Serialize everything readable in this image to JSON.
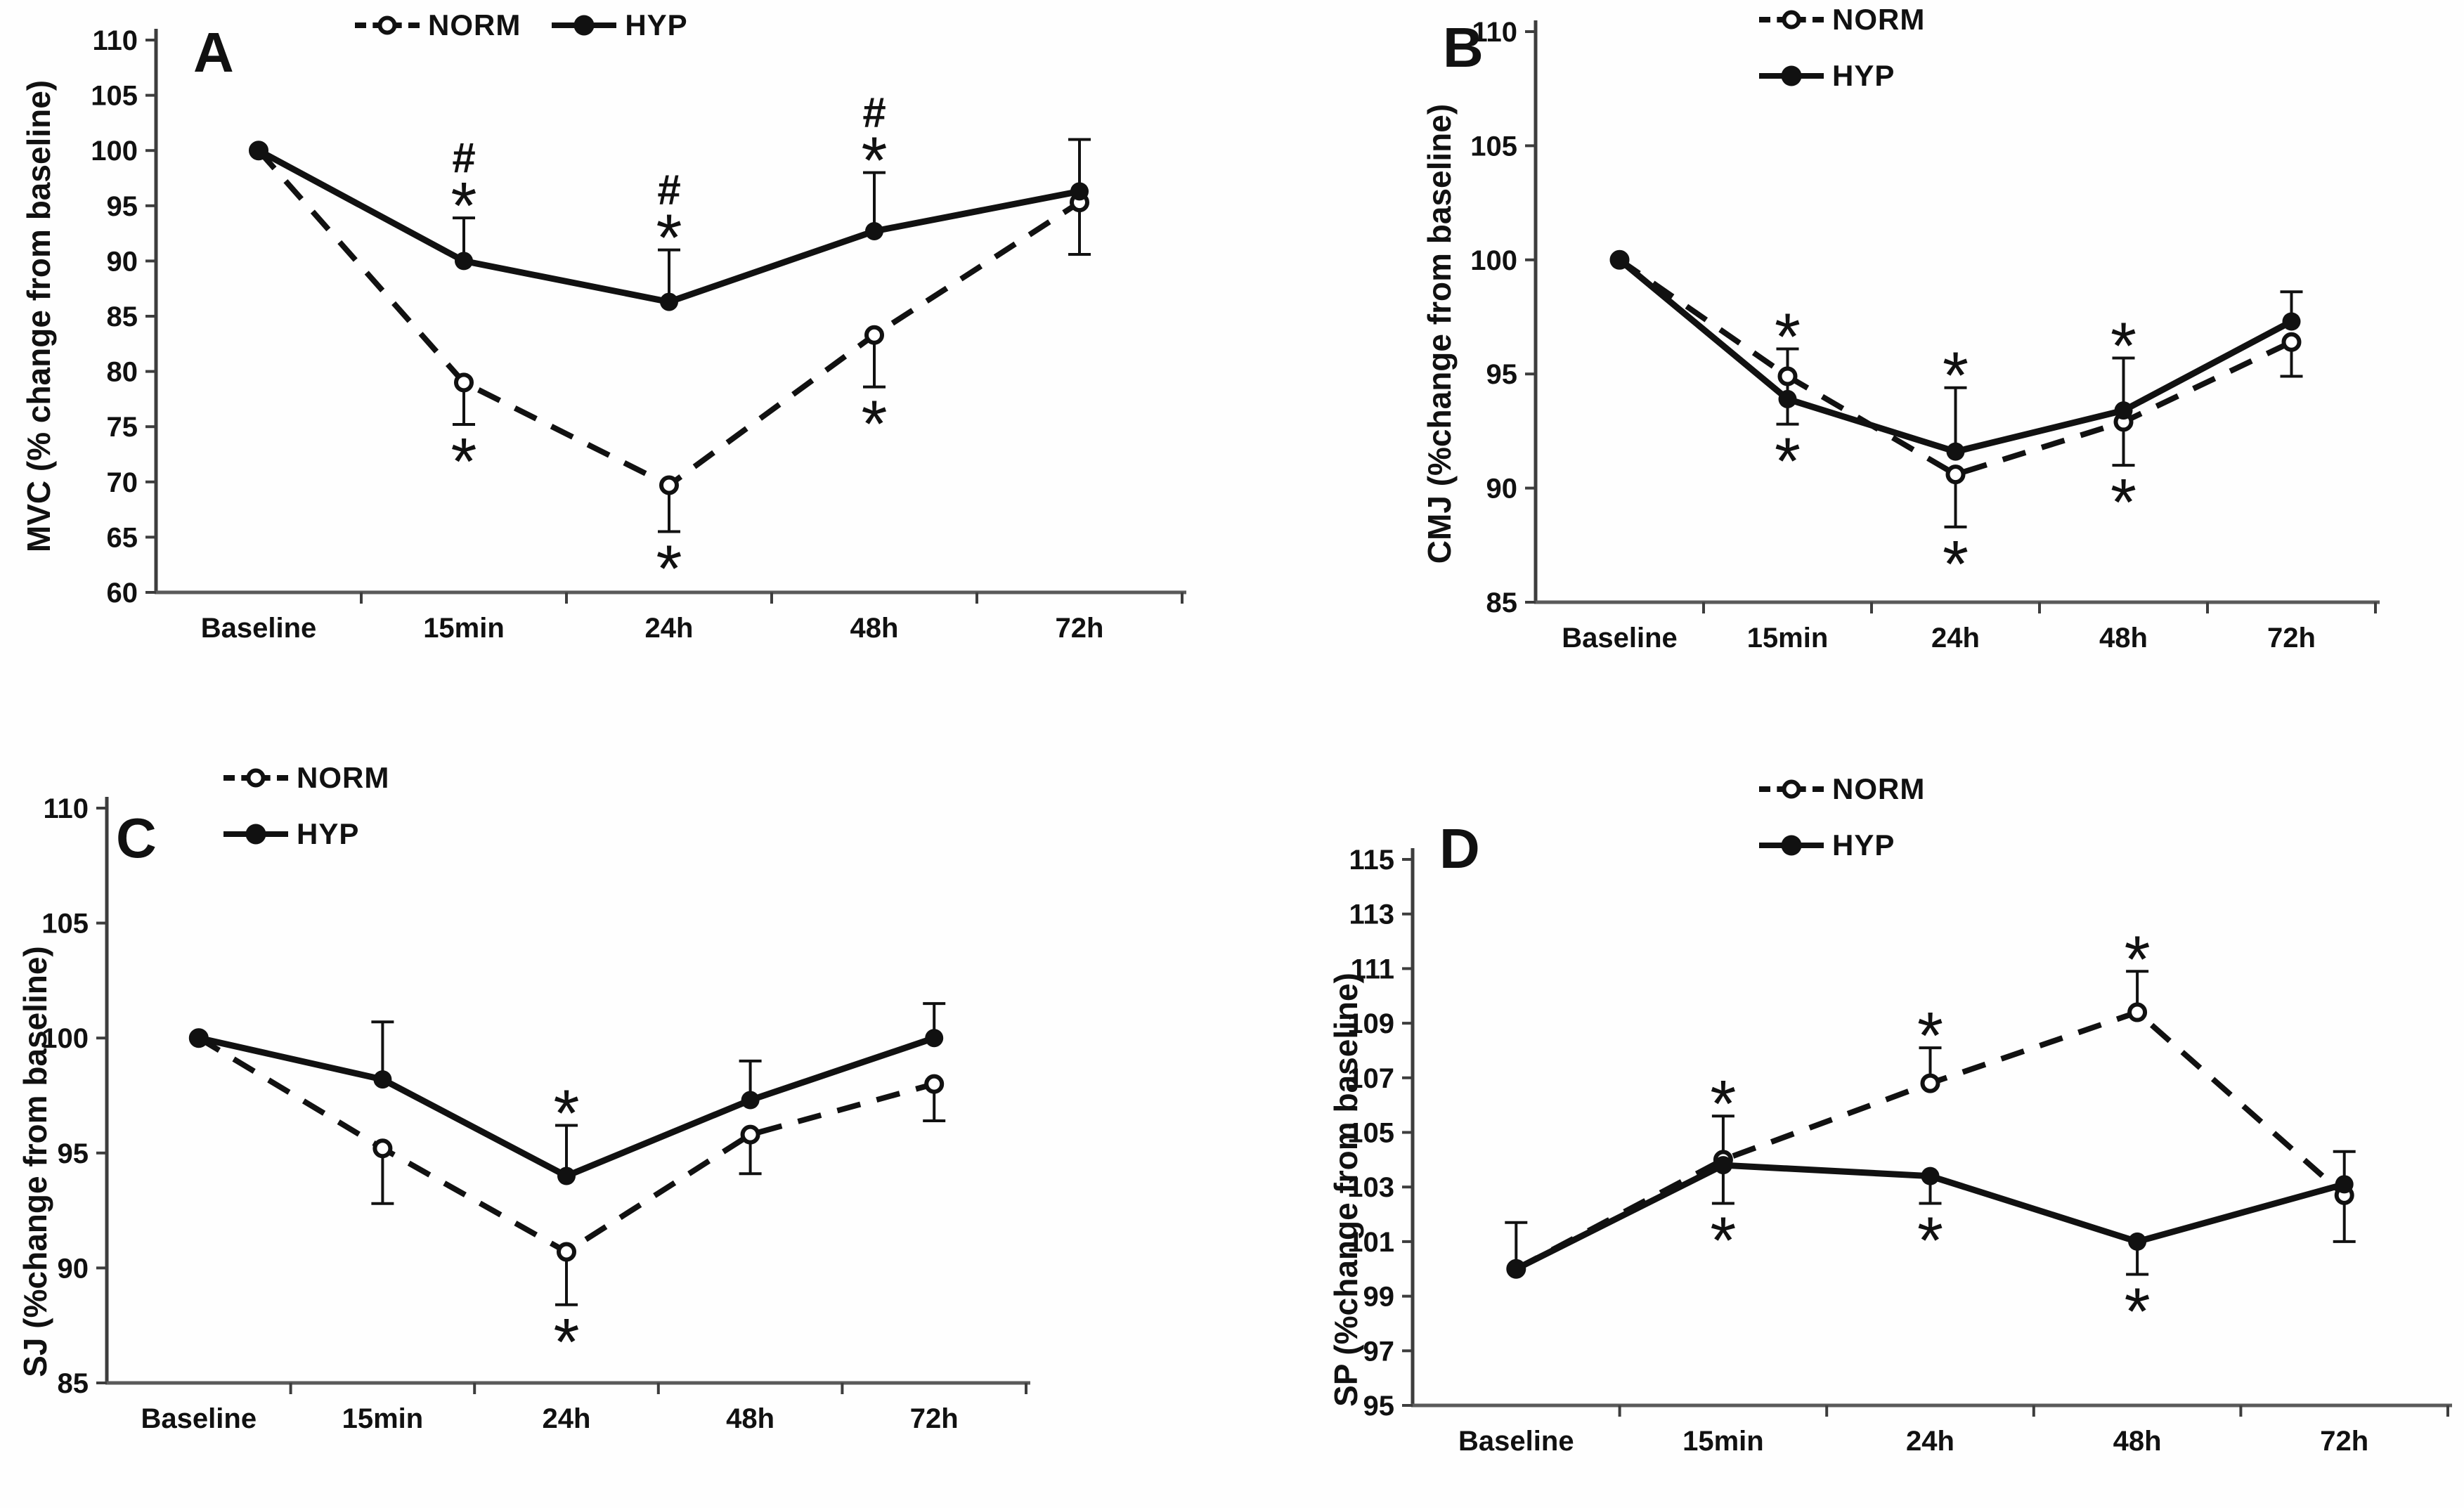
{
  "chart_data": [
    {
      "panel": "A",
      "type": "line",
      "ylabel": "MVC (% change from baseline)",
      "categories": [
        "Baseline",
        "15min",
        "24h",
        "48h",
        "72h"
      ],
      "ylim": [
        60,
        110
      ],
      "ystep": 5,
      "grid": false,
      "legend_position": "top-horizontal",
      "series": [
        {
          "name": "NORM",
          "style": "dashed-open",
          "values": [
            100,
            79.0,
            69.7,
            83.3,
            95.3
          ],
          "err_up": [
            null,
            null,
            null,
            null,
            null
          ],
          "err_down": [
            null,
            3.8,
            4.2,
            4.7,
            4.7
          ]
        },
        {
          "name": "HYP",
          "style": "solid-filled",
          "values": [
            100,
            90.0,
            86.3,
            92.7,
            96.3
          ],
          "err_up": [
            null,
            3.9,
            4.7,
            5.3,
            4.7
          ],
          "err_down": [
            null,
            null,
            null,
            null,
            null
          ]
        }
      ],
      "annotations": [
        {
          "x": 1,
          "pos": "above",
          "series": "HYP",
          "symbols": [
            "#",
            "*"
          ]
        },
        {
          "x": 1,
          "pos": "below",
          "series": "NORM",
          "symbols": [
            "*"
          ]
        },
        {
          "x": 2,
          "pos": "above",
          "series": "HYP",
          "symbols": [
            "#",
            "*"
          ]
        },
        {
          "x": 2,
          "pos": "below",
          "series": "NORM",
          "symbols": [
            "*"
          ]
        },
        {
          "x": 3,
          "pos": "above",
          "series": "HYP",
          "symbols": [
            "#",
            "*"
          ]
        },
        {
          "x": 3,
          "pos": "below",
          "series": "NORM",
          "symbols": [
            "*"
          ]
        }
      ]
    },
    {
      "panel": "B",
      "type": "line",
      "ylabel": "CMJ (%change from baseline)",
      "categories": [
        "Baseline",
        "15min",
        "24h",
        "48h",
        "72h"
      ],
      "ylim": [
        85,
        110
      ],
      "ystep": 5,
      "grid": false,
      "legend_position": "top-stacked",
      "series": [
        {
          "name": "NORM",
          "style": "dashed-open",
          "values": [
            100,
            94.9,
            90.6,
            92.9,
            96.4
          ],
          "err_up": [
            null,
            null,
            null,
            null,
            null
          ],
          "err_down": [
            null,
            2.1,
            2.3,
            1.9,
            1.5
          ]
        },
        {
          "name": "HYP",
          "style": "solid-filled",
          "values": [
            100,
            93.9,
            91.6,
            93.4,
            97.3
          ],
          "err_up": [
            null,
            2.2,
            2.8,
            2.3,
            1.3
          ],
          "err_down": [
            null,
            null,
            null,
            null,
            null
          ]
        }
      ],
      "annotations": [
        {
          "x": 1,
          "pos": "above",
          "series": "HYP",
          "symbols": [
            "*"
          ]
        },
        {
          "x": 1,
          "pos": "below",
          "series": "NORM",
          "symbols": [
            "*"
          ]
        },
        {
          "x": 2,
          "pos": "above",
          "series": "HYP",
          "symbols": [
            "*"
          ]
        },
        {
          "x": 2,
          "pos": "below",
          "series": "NORM",
          "symbols": [
            "*"
          ]
        },
        {
          "x": 3,
          "pos": "above",
          "series": "HYP",
          "symbols": [
            "*"
          ]
        },
        {
          "x": 3,
          "pos": "below",
          "series": "NORM",
          "symbols": [
            "*"
          ]
        }
      ]
    },
    {
      "panel": "C",
      "type": "line",
      "ylabel": "SJ (%change from baseline)",
      "categories": [
        "Baseline",
        "15min",
        "24h",
        "48h",
        "72h"
      ],
      "ylim": [
        85,
        110
      ],
      "ystep": 5,
      "grid": false,
      "legend_position": "top-stacked",
      "series": [
        {
          "name": "NORM",
          "style": "dashed-open",
          "values": [
            100,
            95.2,
            90.7,
            95.8,
            98.0
          ],
          "err_up": [
            null,
            null,
            null,
            null,
            null
          ],
          "err_down": [
            null,
            2.4,
            2.3,
            1.7,
            1.6
          ]
        },
        {
          "name": "HYP",
          "style": "solid-filled",
          "values": [
            100,
            98.2,
            94.0,
            97.3,
            100.0
          ],
          "err_up": [
            null,
            2.5,
            2.2,
            1.7,
            1.5
          ],
          "err_down": [
            null,
            null,
            null,
            null,
            null
          ]
        }
      ],
      "annotations": [
        {
          "x": 2,
          "pos": "above",
          "series": "HYP",
          "symbols": [
            "*"
          ]
        },
        {
          "x": 2,
          "pos": "below",
          "series": "NORM",
          "symbols": [
            "*"
          ]
        }
      ]
    },
    {
      "panel": "D",
      "type": "line",
      "ylabel": "SP (%change from baseline)",
      "categories": [
        "Baseline",
        "15min",
        "24h",
        "48h",
        "72h"
      ],
      "ylim": [
        95,
        115
      ],
      "ystep": 2,
      "grid": false,
      "legend_position": "top-stacked",
      "series": [
        {
          "name": "NORM",
          "style": "dashed-open",
          "values": [
            100,
            104.0,
            106.8,
            109.4,
            102.7
          ],
          "err_up": [
            1.7,
            1.6,
            1.3,
            1.5,
            null
          ],
          "err_down": [
            null,
            null,
            null,
            null,
            1.7
          ]
        },
        {
          "name": "HYP",
          "style": "solid-filled",
          "values": [
            100,
            103.8,
            103.4,
            101.0,
            103.1
          ],
          "err_up": [
            null,
            null,
            null,
            null,
            1.2
          ],
          "err_down": [
            null,
            1.4,
            1.0,
            1.2,
            null
          ]
        }
      ],
      "annotations": [
        {
          "x": 1,
          "pos": "above",
          "series": "NORM",
          "symbols": [
            "*"
          ]
        },
        {
          "x": 1,
          "pos": "below",
          "series": "HYP",
          "symbols": [
            "*"
          ]
        },
        {
          "x": 2,
          "pos": "above",
          "series": "NORM",
          "symbols": [
            "*"
          ]
        },
        {
          "x": 2,
          "pos": "below",
          "series": "HYP",
          "symbols": [
            "*"
          ]
        },
        {
          "x": 3,
          "pos": "above",
          "series": "NORM",
          "symbols": [
            "*"
          ]
        },
        {
          "x": 3,
          "pos": "below",
          "series": "HYP",
          "symbols": [
            "*"
          ]
        }
      ]
    }
  ],
  "colors": {
    "line": "#111111",
    "axis": "#3d3d3d",
    "background": "#fefefe"
  }
}
